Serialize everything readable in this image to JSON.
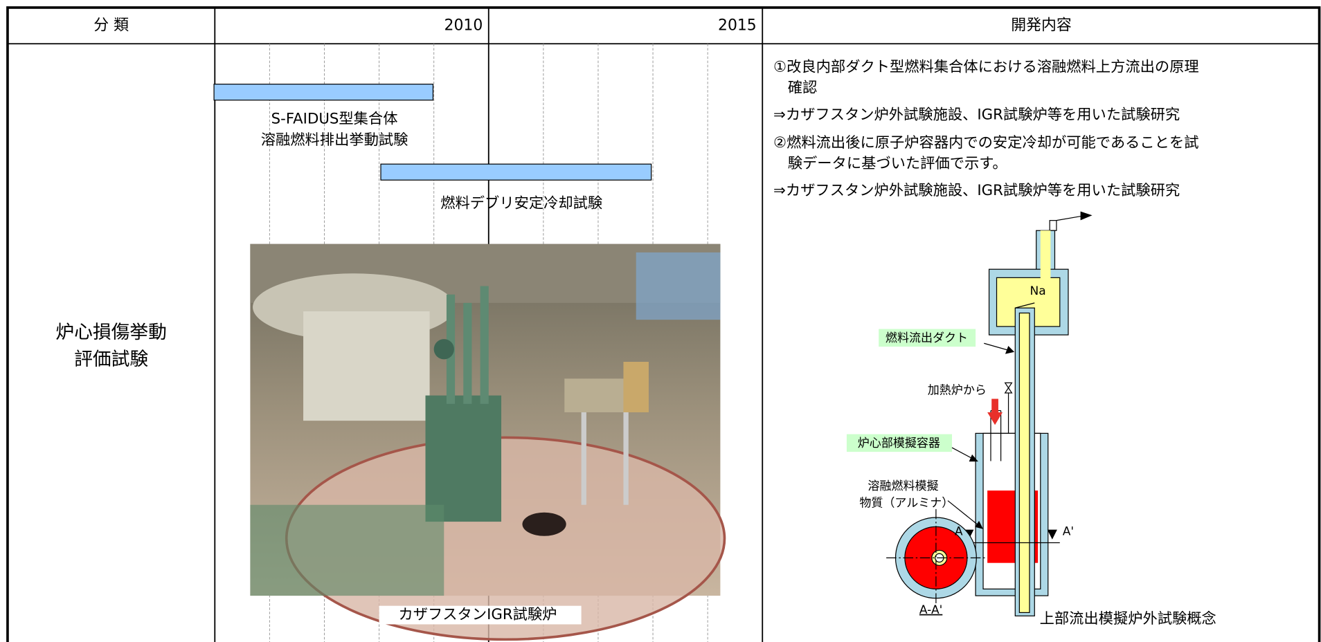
{
  "header": {
    "category": "分 類",
    "year_a": "2010",
    "year_b": "2015",
    "content": "開発内容"
  },
  "row": {
    "category_lines": [
      "炉心損傷挙動",
      "評価試験"
    ],
    "timeline": [
      {
        "label_lines": [
          "S-FAIDUS型集合体",
          "溶融燃料排出挙動試験"
        ]
      },
      {
        "label_lines": [
          "燃料デブリ安定冷却試験"
        ]
      }
    ],
    "photo_caption": "カザフスタンIGR試験炉",
    "content_lines": [
      "①改良内部ダクト型燃料集合体における溶融燃料上方流出の原理",
      "確認",
      "⇒カザフスタン炉外試験施設、IGR試験炉等を用いた試験研究",
      "②燃料流出後に原子炉容器内での安定冷却が可能であることを試",
      "験データに基づいた評価で示す。",
      "⇒カザフスタン炉外試験施設、IGR試験炉等を用いた試験研究"
    ],
    "diagram": {
      "na": "Na",
      "duct": "燃料流出ダクト",
      "heater": "加熱炉から",
      "vessel": "炉心部模擬容器",
      "melt_lines": [
        "溶融燃料模擬",
        "物質（アルミナ）"
      ],
      "section_a": "A",
      "section_a2": "A'",
      "section_name": "A-A'",
      "caption": "上部流出模擬炉外試験概念"
    }
  }
}
